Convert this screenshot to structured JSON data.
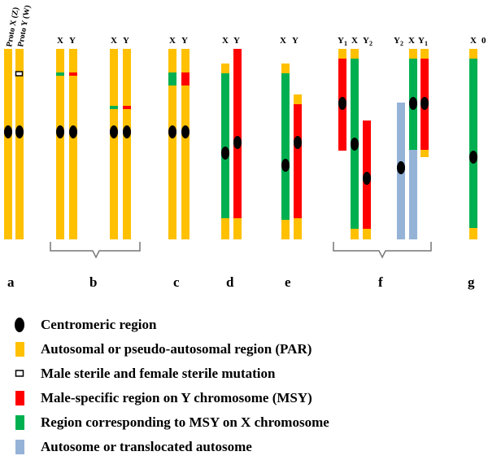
{
  "colors": {
    "autosomal": "#FFC000",
    "msy": "#FF0000",
    "x_msy": "#00B050",
    "autosome": "#95B3D7",
    "centromere": "#000000",
    "outline": "#000000"
  },
  "proto_labels": {
    "x": "Proto X (Z)",
    "y": "Proto Y (W)"
  },
  "chromosome_labels": {
    "b1_x": "X",
    "b1_y": "Y",
    "b2_x": "X",
    "b2_y": "Y",
    "c_x": "X",
    "c_y": "Y",
    "d_x": "X",
    "d_y": "Y",
    "e_x": "X",
    "e_y": "Y",
    "f1_y1": "Y",
    "f1_y1_sub": "1",
    "f1_x": "X",
    "f1_y2": "Y",
    "f1_y2_sub": "2",
    "f2_y2": "Y",
    "f2_y2_sub": "2",
    "f2_x": "X",
    "f2_y1": "Y",
    "f2_y1_sub": "1",
    "g_x": "X",
    "g_0": "0"
  },
  "panels": [
    "a",
    "b",
    "c",
    "d",
    "e",
    "f",
    "g"
  ],
  "legend": [
    {
      "icon": "centromere",
      "label": "Centromeric region"
    },
    {
      "icon": "autosomal",
      "label": "Autosomal or pseudo-autosomal region (PAR)"
    },
    {
      "icon": "mutation",
      "label": "Male sterile and female sterile mutation"
    },
    {
      "icon": "msy",
      "label": "Male-specific region on Y chromosome (MSY)"
    },
    {
      "icon": "x_msy",
      "label": "Region corresponding to MSY on X chromosome"
    },
    {
      "icon": "autosome",
      "label": "Autosome or translocated autosome"
    }
  ]
}
